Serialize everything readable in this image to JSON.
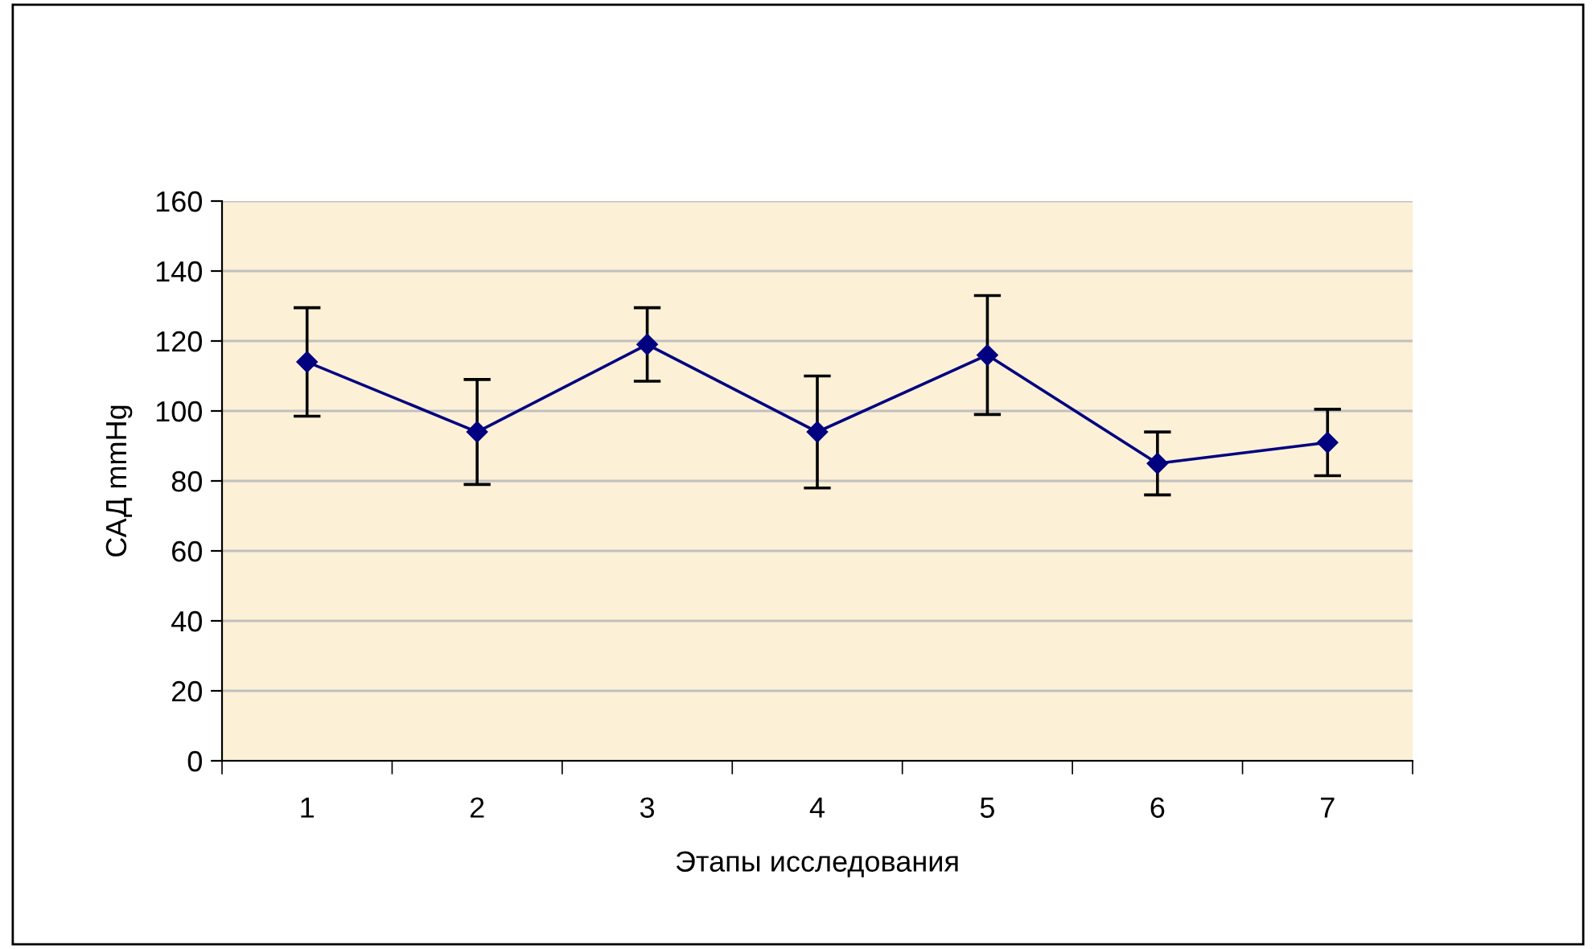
{
  "chart_data": {
    "type": "line",
    "xlabel": "Этапы исследования",
    "ylabel": "САД mmHg",
    "categories": [
      "1",
      "2",
      "3",
      "4",
      "5",
      "6",
      "7"
    ],
    "series": [
      {
        "color": "#000080",
        "values": [
          114,
          94,
          119,
          94,
          116,
          85,
          91
        ],
        "errors": [
          15.5,
          15,
          10.5,
          16,
          17,
          9,
          9.5
        ]
      }
    ],
    "ylim": [
      0,
      160
    ],
    "yticks": [
      0,
      20,
      40,
      60,
      80,
      100,
      120,
      140,
      160
    ],
    "grid": "y",
    "marker": "diamond",
    "line_style": "solid",
    "legend": false
  }
}
